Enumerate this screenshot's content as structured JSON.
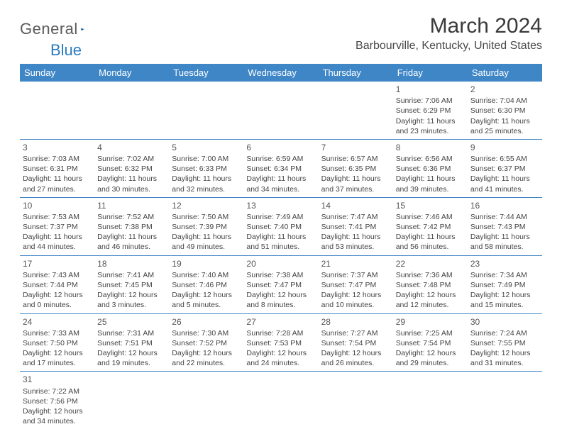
{
  "logo": {
    "general": "General",
    "blue": "Blue"
  },
  "title": "March 2024",
  "location": "Barbourville, Kentucky, United States",
  "colors": {
    "header_bg": "#3f86c7",
    "header_text": "#ffffff",
    "border": "#3f86c7",
    "text": "#444444",
    "logo_gray": "#5a5a5a",
    "logo_blue": "#2b7bbf"
  },
  "weekdays": [
    "Sunday",
    "Monday",
    "Tuesday",
    "Wednesday",
    "Thursday",
    "Friday",
    "Saturday"
  ],
  "weeks": [
    [
      null,
      null,
      null,
      null,
      null,
      {
        "n": "1",
        "sr": "7:06 AM",
        "ss": "6:29 PM",
        "dl": "11 hours and 23 minutes."
      },
      {
        "n": "2",
        "sr": "7:04 AM",
        "ss": "6:30 PM",
        "dl": "11 hours and 25 minutes."
      }
    ],
    [
      {
        "n": "3",
        "sr": "7:03 AM",
        "ss": "6:31 PM",
        "dl": "11 hours and 27 minutes."
      },
      {
        "n": "4",
        "sr": "7:02 AM",
        "ss": "6:32 PM",
        "dl": "11 hours and 30 minutes."
      },
      {
        "n": "5",
        "sr": "7:00 AM",
        "ss": "6:33 PM",
        "dl": "11 hours and 32 minutes."
      },
      {
        "n": "6",
        "sr": "6:59 AM",
        "ss": "6:34 PM",
        "dl": "11 hours and 34 minutes."
      },
      {
        "n": "7",
        "sr": "6:57 AM",
        "ss": "6:35 PM",
        "dl": "11 hours and 37 minutes."
      },
      {
        "n": "8",
        "sr": "6:56 AM",
        "ss": "6:36 PM",
        "dl": "11 hours and 39 minutes."
      },
      {
        "n": "9",
        "sr": "6:55 AM",
        "ss": "6:37 PM",
        "dl": "11 hours and 41 minutes."
      }
    ],
    [
      {
        "n": "10",
        "sr": "7:53 AM",
        "ss": "7:37 PM",
        "dl": "11 hours and 44 minutes."
      },
      {
        "n": "11",
        "sr": "7:52 AM",
        "ss": "7:38 PM",
        "dl": "11 hours and 46 minutes."
      },
      {
        "n": "12",
        "sr": "7:50 AM",
        "ss": "7:39 PM",
        "dl": "11 hours and 49 minutes."
      },
      {
        "n": "13",
        "sr": "7:49 AM",
        "ss": "7:40 PM",
        "dl": "11 hours and 51 minutes."
      },
      {
        "n": "14",
        "sr": "7:47 AM",
        "ss": "7:41 PM",
        "dl": "11 hours and 53 minutes."
      },
      {
        "n": "15",
        "sr": "7:46 AM",
        "ss": "7:42 PM",
        "dl": "11 hours and 56 minutes."
      },
      {
        "n": "16",
        "sr": "7:44 AM",
        "ss": "7:43 PM",
        "dl": "11 hours and 58 minutes."
      }
    ],
    [
      {
        "n": "17",
        "sr": "7:43 AM",
        "ss": "7:44 PM",
        "dl": "12 hours and 0 minutes."
      },
      {
        "n": "18",
        "sr": "7:41 AM",
        "ss": "7:45 PM",
        "dl": "12 hours and 3 minutes."
      },
      {
        "n": "19",
        "sr": "7:40 AM",
        "ss": "7:46 PM",
        "dl": "12 hours and 5 minutes."
      },
      {
        "n": "20",
        "sr": "7:38 AM",
        "ss": "7:47 PM",
        "dl": "12 hours and 8 minutes."
      },
      {
        "n": "21",
        "sr": "7:37 AM",
        "ss": "7:47 PM",
        "dl": "12 hours and 10 minutes."
      },
      {
        "n": "22",
        "sr": "7:36 AM",
        "ss": "7:48 PM",
        "dl": "12 hours and 12 minutes."
      },
      {
        "n": "23",
        "sr": "7:34 AM",
        "ss": "7:49 PM",
        "dl": "12 hours and 15 minutes."
      }
    ],
    [
      {
        "n": "24",
        "sr": "7:33 AM",
        "ss": "7:50 PM",
        "dl": "12 hours and 17 minutes."
      },
      {
        "n": "25",
        "sr": "7:31 AM",
        "ss": "7:51 PM",
        "dl": "12 hours and 19 minutes."
      },
      {
        "n": "26",
        "sr": "7:30 AM",
        "ss": "7:52 PM",
        "dl": "12 hours and 22 minutes."
      },
      {
        "n": "27",
        "sr": "7:28 AM",
        "ss": "7:53 PM",
        "dl": "12 hours and 24 minutes."
      },
      {
        "n": "28",
        "sr": "7:27 AM",
        "ss": "7:54 PM",
        "dl": "12 hours and 26 minutes."
      },
      {
        "n": "29",
        "sr": "7:25 AM",
        "ss": "7:54 PM",
        "dl": "12 hours and 29 minutes."
      },
      {
        "n": "30",
        "sr": "7:24 AM",
        "ss": "7:55 PM",
        "dl": "12 hours and 31 minutes."
      }
    ],
    [
      {
        "n": "31",
        "sr": "7:22 AM",
        "ss": "7:56 PM",
        "dl": "12 hours and 34 minutes."
      },
      null,
      null,
      null,
      null,
      null,
      null
    ]
  ],
  "labels": {
    "sunrise": "Sunrise:",
    "sunset": "Sunset:",
    "daylight": "Daylight:"
  }
}
